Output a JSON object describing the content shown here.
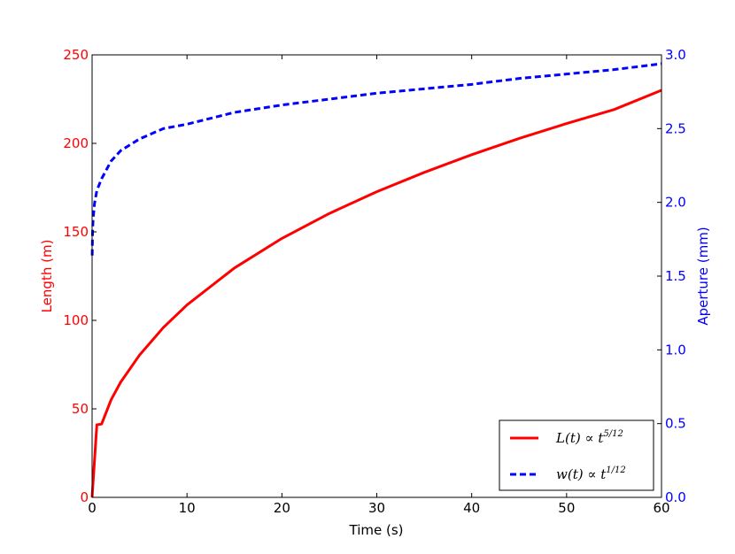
{
  "chart_data": {
    "type": "line",
    "xlabel": "Time (s)",
    "ylabel_left": "Length (m)",
    "ylabel_right": "Aperture (mm)",
    "xlim": [
      0,
      60
    ],
    "ylim_left": [
      0,
      250
    ],
    "ylim_right": [
      0.0,
      3.0
    ],
    "x_ticks": [
      "0",
      "10",
      "20",
      "30",
      "40",
      "50",
      "60"
    ],
    "y_ticks_left": [
      "0",
      "50",
      "100",
      "150",
      "200",
      "250"
    ],
    "y_ticks_right": [
      "0.0",
      "0.5",
      "1.0",
      "1.5",
      "2.0",
      "2.5",
      "3.0"
    ],
    "left_axis_color": "#ff0000",
    "right_axis_color": "#0000ff",
    "grid": false,
    "legend_position": "lower-right",
    "series": [
      {
        "name": "L(t) ∝ t^(5/12)",
        "label_parts": {
          "base": "L(t) ∝ t",
          "exponent": "5/12"
        },
        "axis": "left",
        "color": "#ff0000",
        "style": "solid",
        "x": [
          0,
          0.5,
          1,
          2,
          3,
          5,
          7.5,
          10,
          15,
          20,
          25,
          30,
          35,
          40,
          45,
          50,
          55,
          60
        ],
        "y": [
          0,
          41,
          41.4,
          55.1,
          65.0,
          80.4,
          95.9,
          108.7,
          129.6,
          146.3,
          160.4,
          172.7,
          183.6,
          193.6,
          202.8,
          211.2,
          219.1,
          230.0
        ]
      },
      {
        "name": "w(t) ∝ t^(1/12)",
        "label_parts": {
          "base": "w(t) ∝ t",
          "exponent": "1/12"
        },
        "axis": "right",
        "color": "#0000ff",
        "style": "dashed",
        "x": [
          0.01,
          0.05,
          0.1,
          0.25,
          0.5,
          1,
          2,
          3,
          5,
          7.5,
          10,
          15,
          20,
          25,
          30,
          35,
          40,
          45,
          50,
          55,
          60
        ],
        "y": [
          1.64,
          1.8,
          1.88,
          1.99,
          2.08,
          2.16,
          2.28,
          2.35,
          2.43,
          2.5,
          2.53,
          2.61,
          2.66,
          2.7,
          2.74,
          2.77,
          2.8,
          2.84,
          2.87,
          2.9,
          2.94
        ]
      }
    ]
  }
}
